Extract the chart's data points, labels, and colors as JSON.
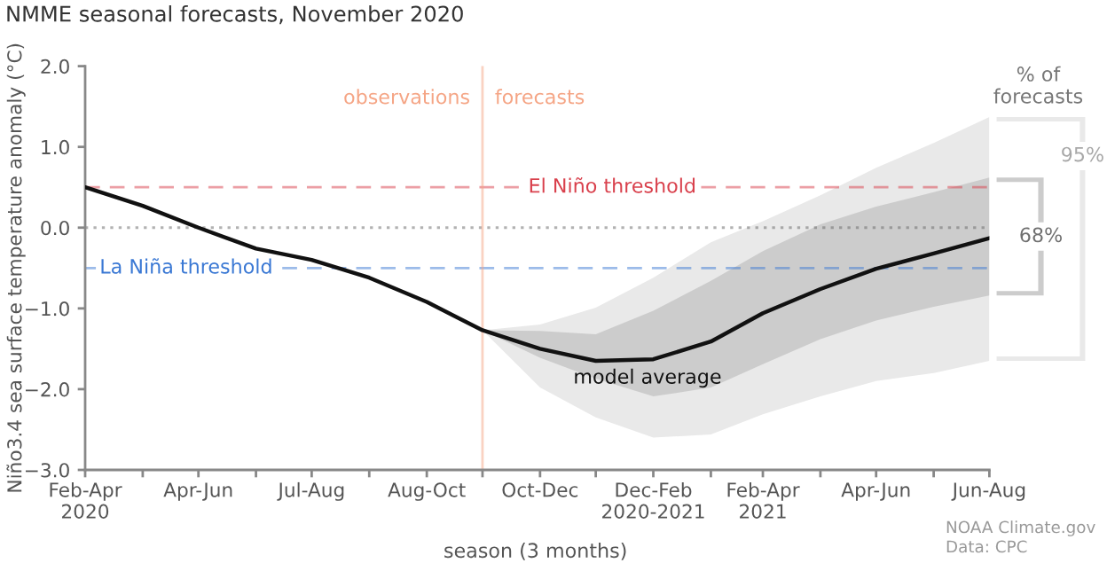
{
  "chart_data": {
    "type": "line",
    "title": "NMME seasonal forecasts, November 2020",
    "xlabel": "season (3 months)",
    "ylabel": "Niño3.4 sea surface temperature anomaly (°C)",
    "legend_title": "% of forecasts",
    "legend": "right",
    "x": [
      "2020-03",
      "2020-04",
      "2020-05",
      "2020-06",
      "2020-07",
      "2020-08",
      "2020-09",
      "2020-10",
      "2020-11",
      "2020-12",
      "2021-01",
      "2021-02",
      "2021-03",
      "2021-04",
      "2021-05",
      "2021-06",
      "2021-07"
    ],
    "xlim": [
      "2020-03",
      "2021-07"
    ],
    "xticks": [
      {
        "value": "2020-03",
        "label": "Feb-Apr\n2020"
      },
      {
        "value": "2020-04",
        "label": null
      },
      {
        "value": "2020-05",
        "label": "Apr-Jun"
      },
      {
        "value": "2020-06",
        "label": null
      },
      {
        "value": "2020-07",
        "label": "Jul-Aug"
      },
      {
        "value": "2020-08",
        "label": null
      },
      {
        "value": "2020-09",
        "label": "Aug-Oct"
      },
      {
        "value": "2020-10",
        "label": null
      },
      {
        "value": "2020-11",
        "label": "Oct-Dec"
      },
      {
        "value": "2020-12",
        "label": null
      },
      {
        "value": "2021-01",
        "label": "Dec-Feb\n2020-2021"
      },
      {
        "value": "2021-02",
        "label": null
      },
      {
        "value": "2021-03",
        "label": "Feb-Apr\n2021"
      },
      {
        "value": "2021-04",
        "label": null
      },
      {
        "value": "2021-05",
        "label": "Apr-Jun"
      },
      {
        "value": "2021-06",
        "label": null
      },
      {
        "value": "2021-07",
        "label": "Jun-Aug"
      }
    ],
    "ylim": [
      -3,
      2
    ],
    "yticks": [
      {
        "value": -3,
        "label": "−3.0"
      },
      {
        "value": -2,
        "label": "−2.0"
      },
      {
        "value": -1,
        "label": "−1.0"
      },
      {
        "value": 0,
        "label": "0.0"
      },
      {
        "value": 1,
        "label": "1.0"
      },
      {
        "value": 2,
        "label": "2.0"
      }
    ],
    "series": [
      {
        "name": "95%",
        "color": "#e9e9e9",
        "x": [
          "2020-10",
          "2020-11",
          "2020-12",
          "2021-01",
          "2021-02",
          "2021-03",
          "2021-04",
          "2021-05",
          "2021-06",
          "2021-07"
        ],
        "values": [
          null,
          null,
          null,
          null,
          null,
          null,
          null,
          null,
          null,
          null
        ],
        "lower": [
          -1.27,
          -1.98,
          -2.35,
          -2.6,
          -2.56,
          -2.31,
          -2.09,
          -1.9,
          -1.8,
          -1.65
        ],
        "upper": [
          -1.27,
          -1.2,
          -0.99,
          -0.62,
          -0.18,
          0.08,
          0.4,
          0.74,
          1.05,
          1.37
        ]
      },
      {
        "name": "68%",
        "color": "#cccccc",
        "x": [
          "2020-10",
          "2020-11",
          "2020-12",
          "2021-01",
          "2021-02",
          "2021-03",
          "2021-04",
          "2021-05",
          "2021-06",
          "2021-07"
        ],
        "values": [
          null,
          null,
          null,
          null,
          null,
          null,
          null,
          null,
          null,
          null
        ],
        "lower": [
          -1.27,
          -1.61,
          -1.87,
          -2.09,
          -1.98,
          -1.69,
          -1.38,
          -1.15,
          -0.98,
          -0.84
        ],
        "upper": [
          -1.27,
          -1.28,
          -1.32,
          -1.03,
          -0.66,
          -0.29,
          0.04,
          0.26,
          0.44,
          0.62
        ]
      },
      {
        "name": "model average",
        "color": "#111111",
        "values": [
          0.5,
          0.27,
          0.0,
          -0.26,
          -0.4,
          -0.62,
          -0.92,
          -1.27,
          -1.5,
          -1.65,
          -1.63,
          -1.41,
          -1.06,
          -0.76,
          -0.51,
          -0.32,
          -0.13
        ]
      }
    ],
    "ref_lines": [
      {
        "axis": "y",
        "value": 0.5,
        "label": "El Niño threshold",
        "color": "#d9404c",
        "line_style": "dashed"
      },
      {
        "axis": "y",
        "value": 0,
        "color": "#666666",
        "line_style": "dotted"
      },
      {
        "axis": "y",
        "value": -0.5,
        "label": "La Niña threshold",
        "color": "#3a78d4",
        "line_style": "dashed"
      },
      {
        "axis": "x",
        "value": "2020-10",
        "color": "#f5a585",
        "line_style": "solid"
      }
    ],
    "annotations": [
      {
        "text": "observations",
        "x": "2020-10",
        "y": 1.6
      },
      {
        "text": "forecasts",
        "x": "2020-10",
        "y": 1.6
      },
      "NOAA Climate.gov",
      "Data: CPC"
    ]
  }
}
